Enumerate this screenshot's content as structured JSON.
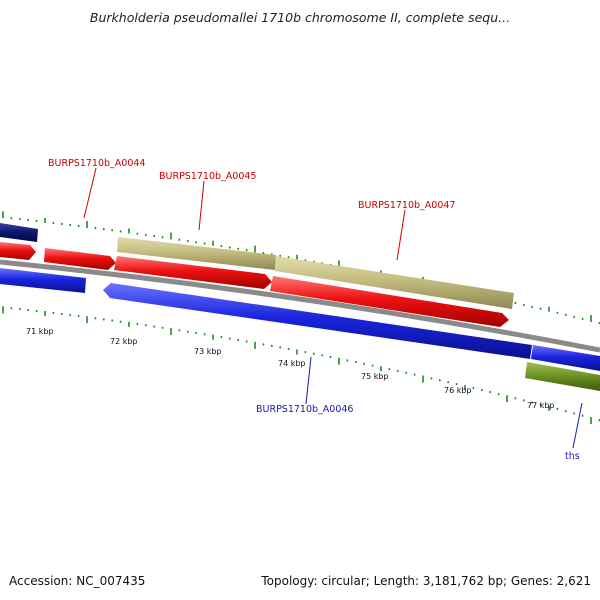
{
  "title": "Burkholderia pseudomallei 1710b chromosome II, complete sequ...",
  "footer": {
    "accession": "Accession: NC_007435",
    "summary": "Topology: circular; Length: 3,181,762 bp; Genes: 2,621"
  },
  "colors": {
    "forward_gene": "#ee1111",
    "reverse_gene": "#1a24dd",
    "forward_other": "#c4bd80",
    "dark_gene": "#0d1470",
    "olive_gene": "#6b8f22",
    "backbone": "#8a8a8a",
    "tick": "#1f8a1f",
    "label_red": "#cc0000",
    "label_blue": "#1a1aaa"
  },
  "scale": {
    "unit": "kbp",
    "ticks": [
      {
        "label": "71 kbp"
      },
      {
        "label": "72 kbp"
      },
      {
        "label": "73 kbp"
      },
      {
        "label": "74 kbp"
      },
      {
        "label": "75 kbp"
      },
      {
        "label": "76 kbp"
      },
      {
        "label": "77 kbp"
      }
    ]
  },
  "features": [
    {
      "label": "BURPS1710b_A0044",
      "strand": "forward"
    },
    {
      "label": "BURPS1710b_A0045",
      "strand": "forward"
    },
    {
      "label": "BURPS1710b_A0047",
      "strand": "forward"
    },
    {
      "label": "BURPS1710b_A0046",
      "strand": "reverse"
    },
    {
      "label": "ths",
      "strand": "reverse"
    }
  ]
}
